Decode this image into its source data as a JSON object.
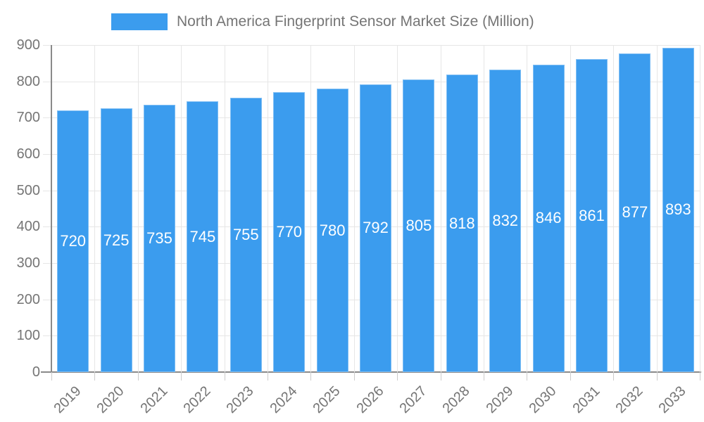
{
  "legend": {
    "label": "North America Fingerprint Sensor Market Size (Million)"
  },
  "colors": {
    "bar": "#3B9CEE",
    "bar_edge": "rgba(255,255,255,0.35)",
    "grid": "#e6e6e6",
    "axis": "#8a8a8a",
    "tick": "#cccccc",
    "axis_label": "#757575",
    "value_label": "#ffffff",
    "background": "#ffffff"
  },
  "chart_data": {
    "type": "bar",
    "title": "North America Fingerprint Sensor Market Size (Million)",
    "categories": [
      "2019",
      "2020",
      "2021",
      "2022",
      "2023",
      "2024",
      "2025",
      "2026",
      "2027",
      "2028",
      "2029",
      "2030",
      "2031",
      "2032",
      "2033"
    ],
    "values": [
      720,
      725,
      735,
      745,
      755,
      770,
      780,
      792,
      805,
      818,
      832,
      846,
      861,
      877,
      893
    ],
    "xlabel": "",
    "ylabel": "",
    "ylim": [
      0,
      900
    ],
    "ytick_step": 100,
    "yticks": [
      0,
      100,
      200,
      300,
      400,
      500,
      600,
      700,
      800,
      900
    ],
    "grid": true,
    "legend_position": "top",
    "value_label_position": "inside-center",
    "x_label_rotation_deg": 45
  }
}
